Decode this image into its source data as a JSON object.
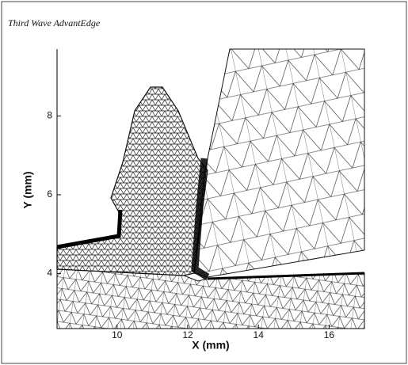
{
  "chart_data": {
    "type": "mesh",
    "title": "Third Wave AdvantEdge",
    "x_label": "X (mm)",
    "y_label": "Y (mm)",
    "xlim": [
      8.3,
      17.0
    ],
    "xticks": [
      10,
      12,
      14,
      16
    ],
    "ylim": [
      2.6,
      9.7
    ],
    "yticks": [
      4,
      6,
      8
    ]
  }
}
